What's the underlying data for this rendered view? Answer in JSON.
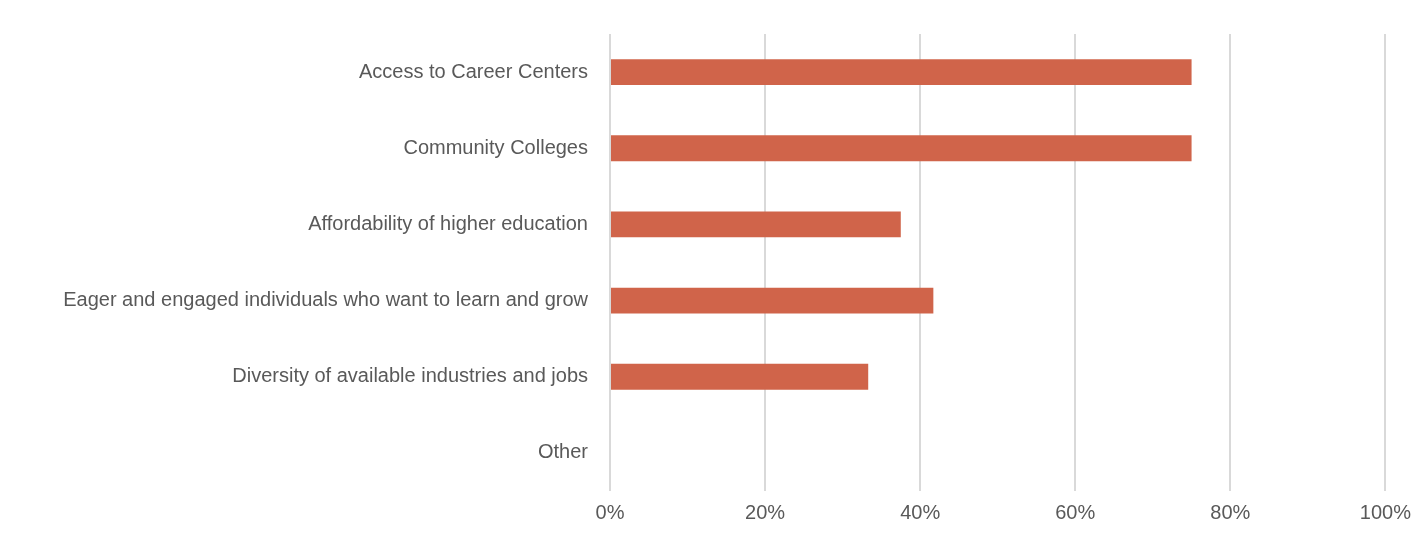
{
  "chart_data": {
    "type": "bar",
    "orientation": "horizontal",
    "categories": [
      "Access to Career Centers",
      "Community Colleges",
      "Affordability of higher education",
      "Eager and engaged individuals who want to learn and grow",
      "Diversity of available industries and jobs",
      "Other"
    ],
    "values": [
      75,
      75,
      37.5,
      41.7,
      33.3,
      0
    ],
    "color": "#d0644a",
    "xlim": [
      0,
      100
    ],
    "xticks": [
      {
        "value": 0,
        "label": "0%"
      },
      {
        "value": 20,
        "label": "20%"
      },
      {
        "value": 40,
        "label": "40%"
      },
      {
        "value": 60,
        "label": "60%"
      },
      {
        "value": 80,
        "label": "80%"
      },
      {
        "value": 100,
        "label": "100%"
      }
    ],
    "grid": "x",
    "legend": false
  }
}
